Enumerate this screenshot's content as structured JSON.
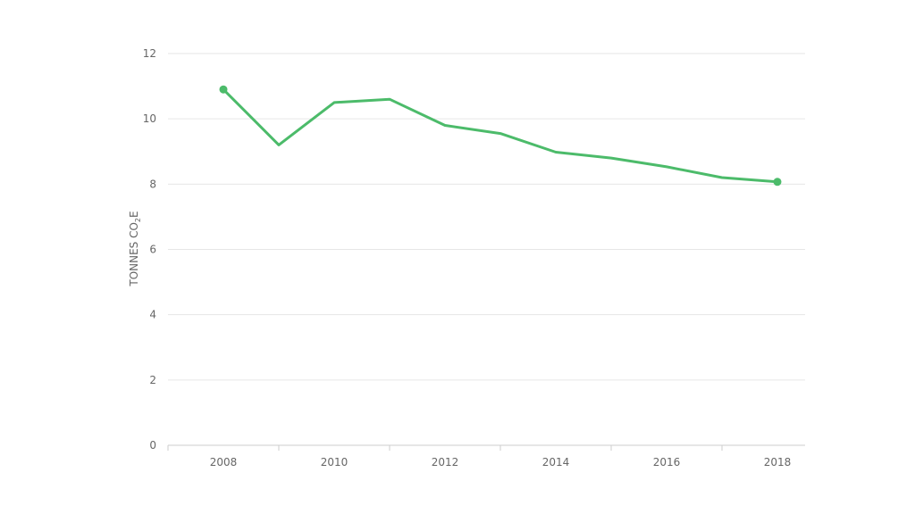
{
  "chart_data": {
    "type": "line",
    "title": "",
    "xlabel": "",
    "ylabel": "TONNES CO",
    "ylabel_subscript": "2",
    "ylabel_suffix": "E",
    "x": [
      2008,
      2009,
      2010,
      2011,
      2012,
      2013,
      2014,
      2015,
      2016,
      2017,
      2018
    ],
    "x_tick_labels": [
      "2008",
      "2010",
      "2012",
      "2014",
      "2016",
      "2018"
    ],
    "y_tick_labels": [
      "0",
      "2",
      "4",
      "6",
      "8",
      "10",
      "12"
    ],
    "ylim": [
      0,
      12
    ],
    "xlim": [
      2007,
      2018.5
    ],
    "grid": true,
    "series": [
      {
        "values": [
          10.9,
          9.2,
          10.5,
          10.6,
          9.8,
          9.55,
          8.98,
          8.8,
          8.53,
          8.2,
          8.07
        ],
        "color": "#4cbb6a",
        "endpoint_markers": true
      }
    ]
  }
}
